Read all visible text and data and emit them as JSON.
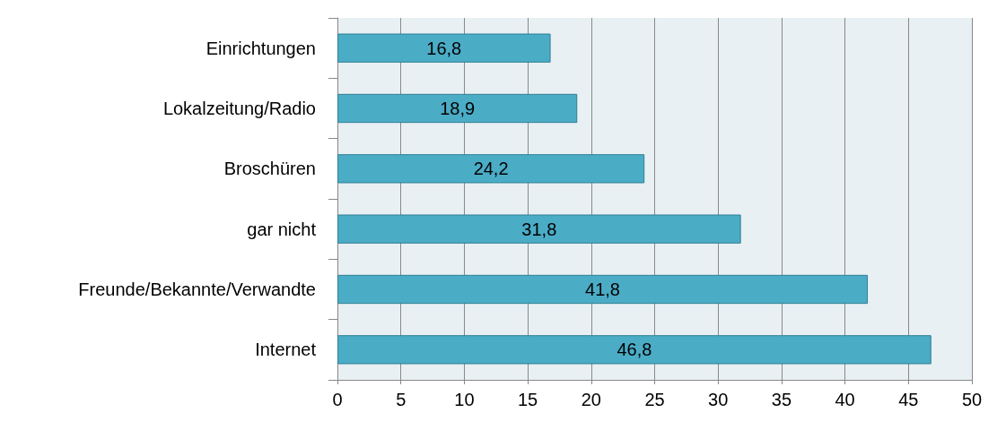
{
  "chart_data": {
    "type": "bar",
    "orientation": "horizontal",
    "categories": [
      "Einrichtungen",
      "Lokalzeitung/Radio",
      "Broschüren",
      "gar nicht",
      "Freunde/Bekannte/Verwandte",
      "Internet"
    ],
    "values": [
      16.8,
      18.9,
      24.2,
      31.8,
      41.8,
      46.8
    ],
    "value_labels": [
      "16,8",
      "18,9",
      "24,2",
      "31,8",
      "41,8",
      "46,8"
    ],
    "color": "#4bacc6",
    "xlim": [
      0,
      50
    ],
    "xticks": [
      0,
      5,
      10,
      15,
      20,
      25,
      30,
      35,
      40,
      45,
      50
    ],
    "grid": "x"
  }
}
